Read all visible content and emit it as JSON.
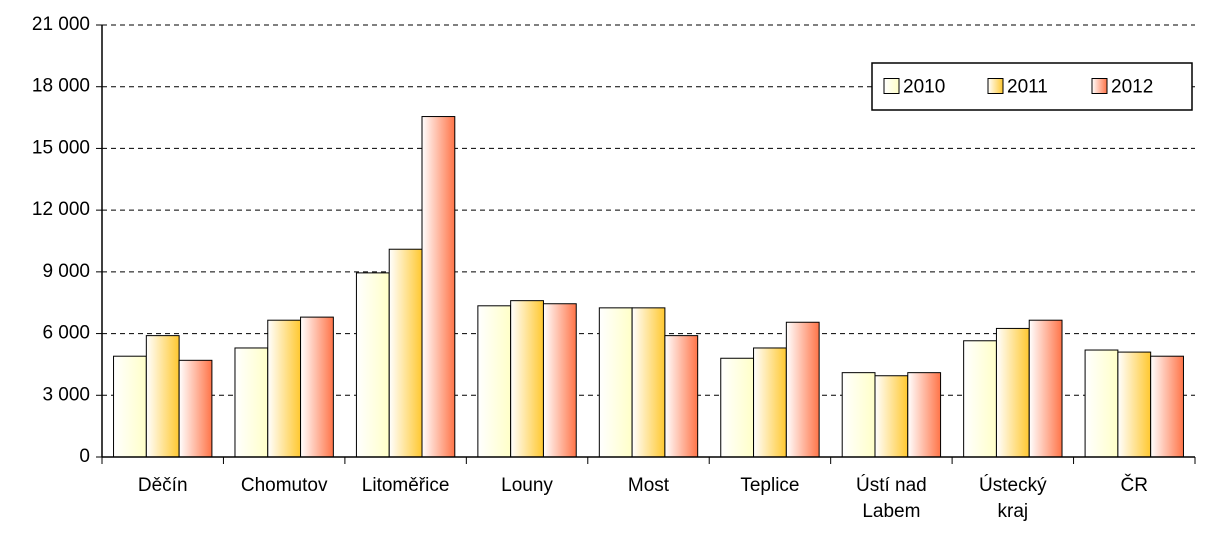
{
  "chart_data": {
    "type": "bar",
    "categories": [
      "Děčín",
      "Chomutov",
      "Litoměřice",
      "Louny",
      "Most",
      "Teplice",
      "Ústí nad Labem",
      "Ústecký kraj",
      "ČR"
    ],
    "series": [
      {
        "name": "2010",
        "color": "#ffffc8",
        "values": [
          4900,
          5300,
          8950,
          7350,
          7250,
          4800,
          4100,
          5650,
          5200
        ]
      },
      {
        "name": "2011",
        "color": "#ffc830",
        "values": [
          5900,
          6650,
          10100,
          7600,
          7250,
          5300,
          3950,
          6250,
          5100
        ]
      },
      {
        "name": "2012",
        "color": "#ff7448",
        "values": [
          4700,
          6800,
          16550,
          7450,
          5900,
          6550,
          4100,
          6650,
          4900
        ]
      }
    ],
    "ylim": [
      0,
      21000
    ],
    "yticks": [
      0,
      {
        "value": 3000,
        "label": "3 000"
      },
      {
        "value": 6000,
        "label": "6 000"
      },
      {
        "value": 9000,
        "label": "9 000"
      },
      {
        "value": 12000,
        "label": "12 000"
      },
      {
        "value": 15000,
        "label": "15 000"
      },
      {
        "value": 18000,
        "label": "18 000"
      },
      {
        "value": 21000,
        "label": "21 000"
      }
    ],
    "grid": true,
    "legend": "top-right"
  }
}
